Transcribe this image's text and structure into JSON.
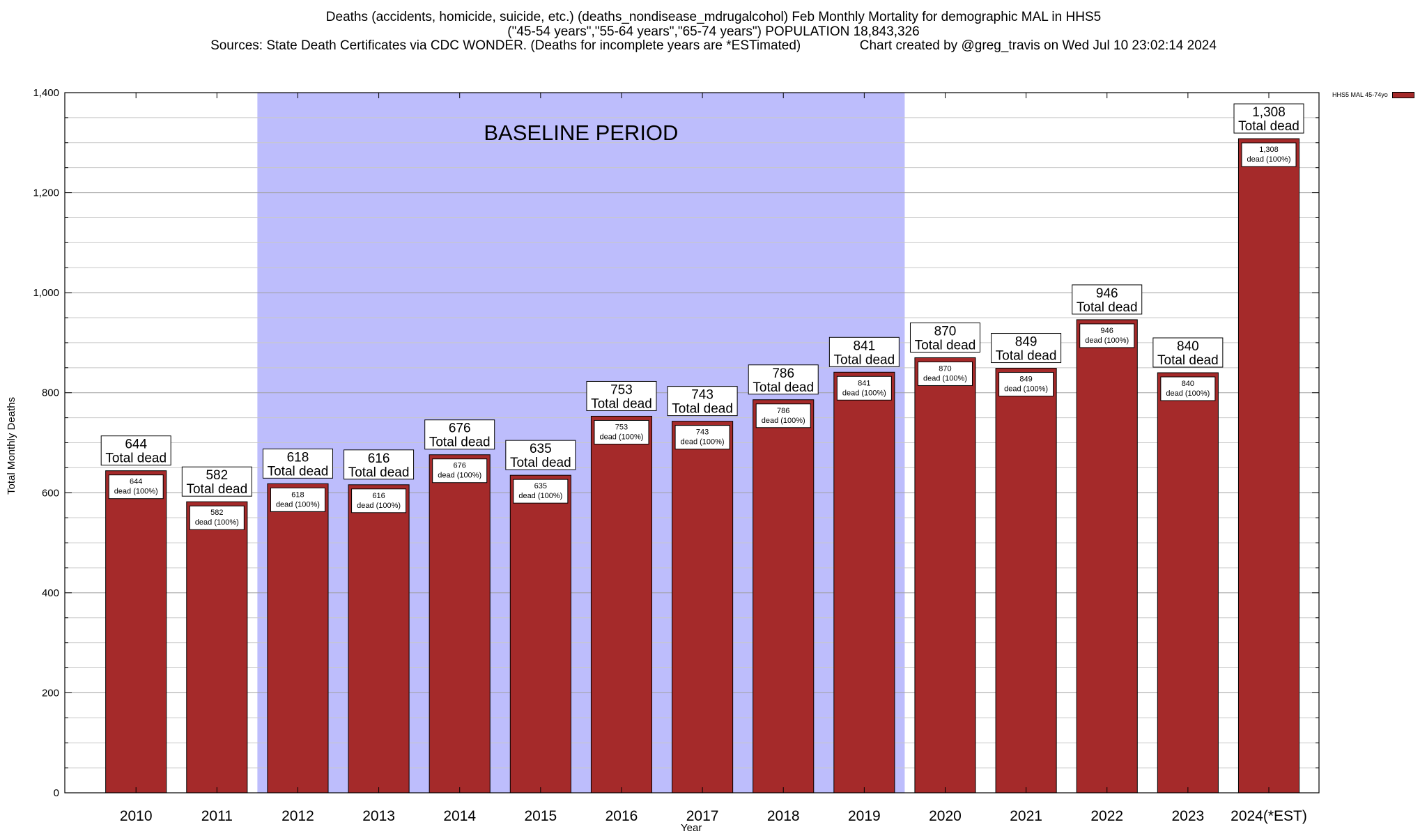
{
  "header": {
    "title_line1": "Deaths (accidents, homicide, suicide, etc.) (deaths_nondisease_mdrugalcohol) Feb Monthly Mortality for demographic MAL in HHS5",
    "title_line2": "(\"45-54 years\",\"55-64 years\",\"65-74 years\") POPULATION 18,843,326",
    "title_line3": "Sources: State Death Certificates via CDC WONDER. (Deaths for incomplete years are *ESTimated)                Chart created by @greg_travis on Wed Jul 10 23:02:14 2024"
  },
  "chart_data": {
    "type": "bar",
    "xlabel": "Year",
    "ylabel": "Total Monthly Deaths",
    "ylim": [
      0,
      1400
    ],
    "yticks": [
      0,
      200,
      400,
      600,
      800,
      1000,
      1200,
      1400
    ],
    "ytick_labels": [
      "0",
      "200",
      "400",
      "600",
      "800",
      "1,000",
      "1,200",
      "1,400"
    ],
    "grid": true,
    "categories": [
      "2010",
      "2011",
      "2012",
      "2013",
      "2014",
      "2015",
      "2016",
      "2017",
      "2018",
      "2019",
      "2020",
      "2021",
      "2022",
      "2023",
      "2024(*EST)"
    ],
    "series": [
      {
        "name": "HHS5 MAL 45-74yo",
        "color": "#a52a2a",
        "values": [
          644,
          582,
          618,
          616,
          676,
          635,
          753,
          743,
          786,
          841,
          870,
          849,
          946,
          840,
          1308
        ]
      }
    ],
    "total_labels": [
      "644",
      "582",
      "618",
      "616",
      "676",
      "635",
      "753",
      "743",
      "786",
      "841",
      "870",
      "849",
      "946",
      "840",
      "1,308"
    ],
    "total_caption": "Total dead",
    "inner_caption": "dead (100%)",
    "baseline": {
      "label": "BASELINE PERIOD",
      "start_category": "2012",
      "end_category": "2019",
      "color": "#bdbdfc"
    },
    "legend": {
      "label": "HHS5 MAL 45-74yo",
      "placement": "top-right"
    }
  }
}
